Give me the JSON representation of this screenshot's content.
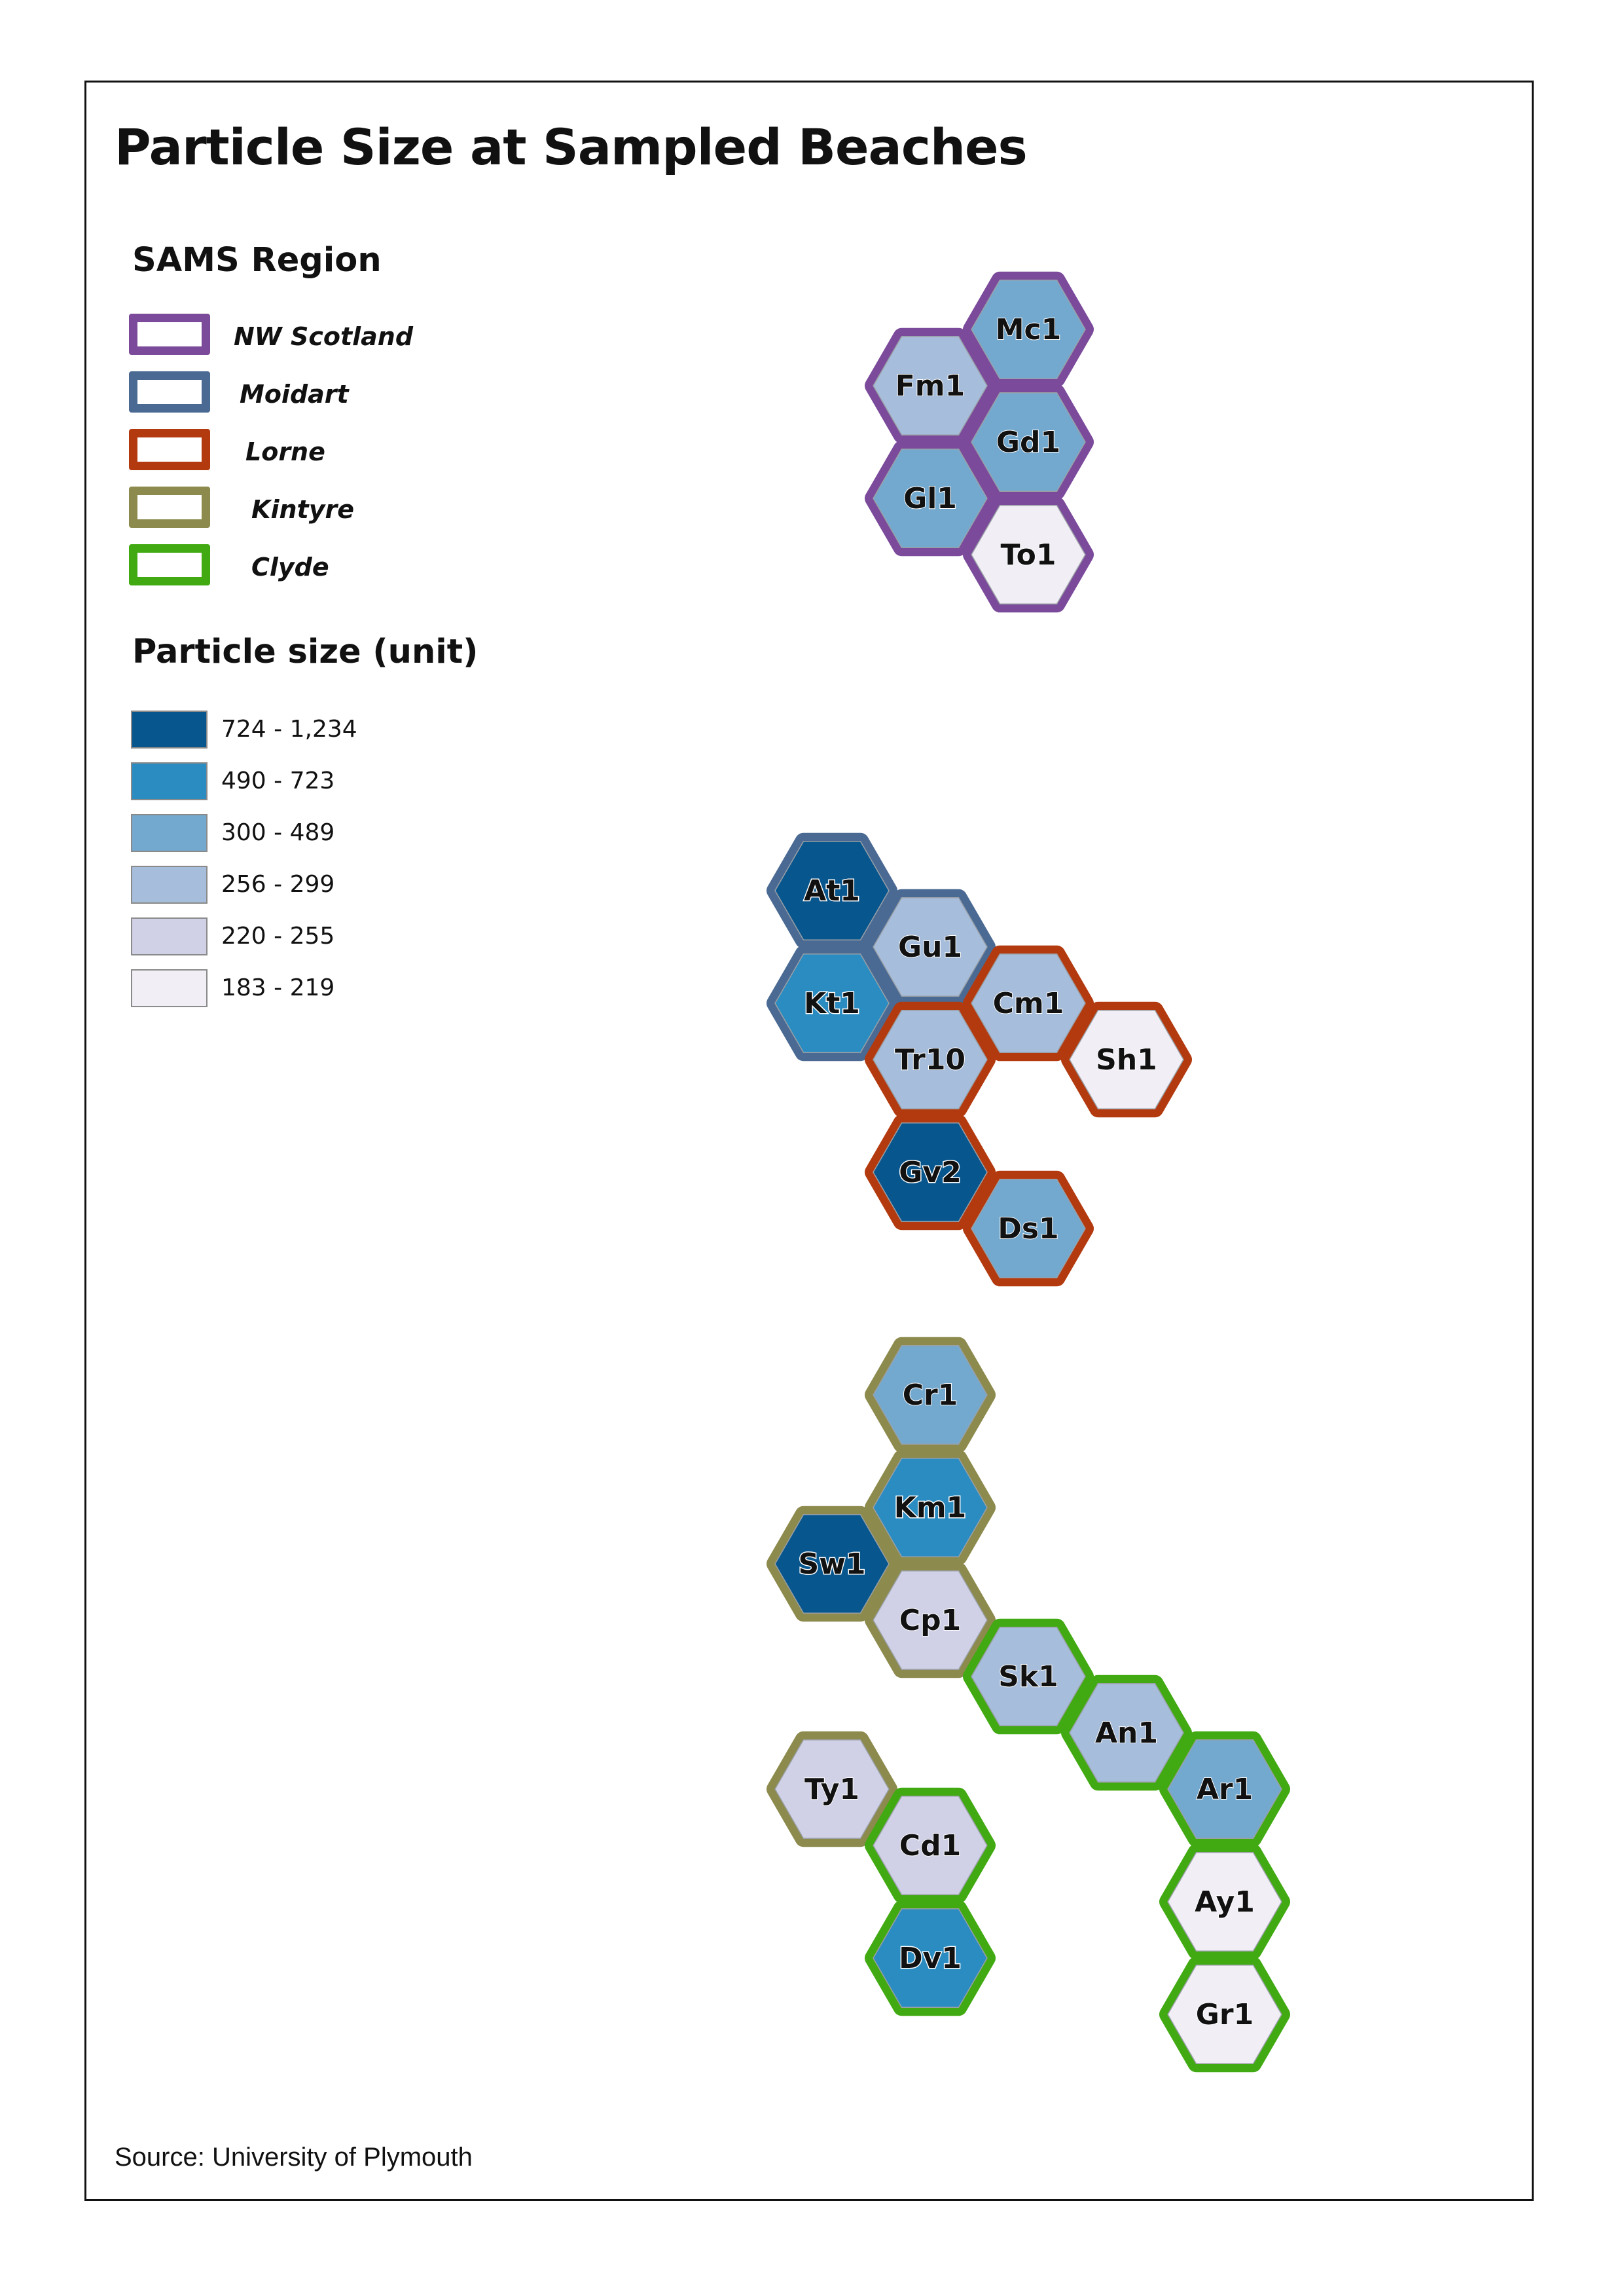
{
  "title": "Particle Size at Sampled Beaches",
  "source": "Source: University of Plymouth",
  "regions_legend": {
    "heading": "SAMS Region",
    "items": [
      {
        "id": "nw",
        "label": "NW Scotland",
        "color": "#7b4a9b"
      },
      {
        "id": "moidart",
        "label": "Moidart",
        "color": "#4a6a93"
      },
      {
        "id": "lorne",
        "label": "Lorne",
        "color": "#b33a0f"
      },
      {
        "id": "kintyre",
        "label": "Kintyre",
        "color": "#8c8a4c"
      },
      {
        "id": "clyde",
        "label": "Clyde",
        "color": "#41aa12"
      }
    ]
  },
  "size_legend": {
    "heading": "Particle size (unit)",
    "classes": [
      {
        "label": "724 - 1,234",
        "color": "#08568e"
      },
      {
        "label": "490 - 723",
        "color": "#2b8cc1"
      },
      {
        "label": "300 - 489",
        "color": "#74a9cf"
      },
      {
        "label": "256 - 299",
        "color": "#a6bddb"
      },
      {
        "label": "220 - 255",
        "color": "#d0d1e6"
      },
      {
        "label": "183 - 219",
        "color": "#f1eef6"
      }
    ]
  },
  "beaches": [
    {
      "code": "Mc1",
      "region": "nw",
      "size_class": 2
    },
    {
      "code": "Fm1",
      "region": "nw",
      "size_class": 3
    },
    {
      "code": "Gd1",
      "region": "nw",
      "size_class": 2
    },
    {
      "code": "Gl1",
      "region": "nw",
      "size_class": 2
    },
    {
      "code": "To1",
      "region": "nw",
      "size_class": 5
    },
    {
      "code": "At1",
      "region": "moidart",
      "size_class": 0
    },
    {
      "code": "Gu1",
      "region": "moidart",
      "size_class": 3
    },
    {
      "code": "Kt1",
      "region": "moidart",
      "size_class": 1
    },
    {
      "code": "Cm1",
      "region": "lorne",
      "size_class": 3
    },
    {
      "code": "Tr10",
      "region": "lorne",
      "size_class": 3
    },
    {
      "code": "Sh1",
      "region": "lorne",
      "size_class": 5
    },
    {
      "code": "Gv2",
      "region": "lorne",
      "size_class": 0
    },
    {
      "code": "Ds1",
      "region": "lorne",
      "size_class": 2
    },
    {
      "code": "Cr1",
      "region": "kintyre",
      "size_class": 2
    },
    {
      "code": "Km1",
      "region": "kintyre",
      "size_class": 1
    },
    {
      "code": "Sw1",
      "region": "kintyre",
      "size_class": 0
    },
    {
      "code": "Cp1",
      "region": "kintyre",
      "size_class": 4
    },
    {
      "code": "Ty1",
      "region": "kintyre",
      "size_class": 4
    },
    {
      "code": "Sk1",
      "region": "clyde",
      "size_class": 3
    },
    {
      "code": "An1",
      "region": "clyde",
      "size_class": 3
    },
    {
      "code": "Ar1",
      "region": "clyde",
      "size_class": 2
    },
    {
      "code": "Ay1",
      "region": "clyde",
      "size_class": 5
    },
    {
      "code": "Gr1",
      "region": "clyde",
      "size_class": 5
    },
    {
      "code": "Cd1",
      "region": "clyde",
      "size_class": 4
    },
    {
      "code": "Dv1",
      "region": "clyde",
      "size_class": 1
    }
  ]
}
